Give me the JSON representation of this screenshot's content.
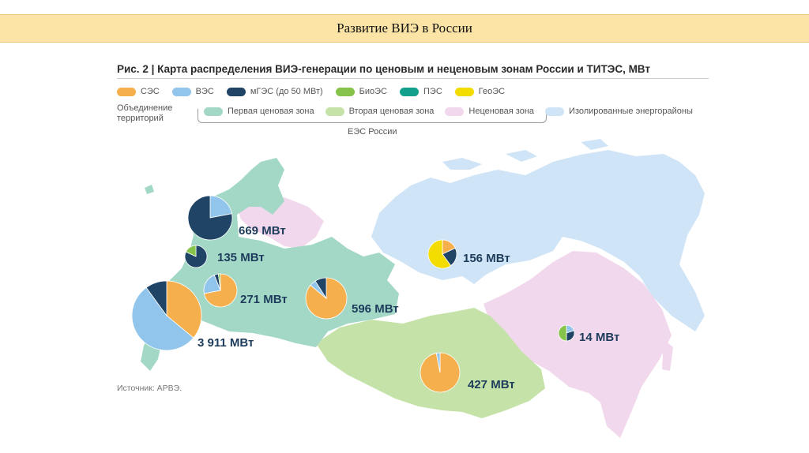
{
  "header": {
    "title": "Развитие ВИЭ в России"
  },
  "figure": {
    "title": "Рис. 2 | Карта распределения ВИЭ-генерации по ценовым и неценовым зонам России и ТИТЭС, МВт",
    "source": "Источник: АРВЭ."
  },
  "legend": {
    "types": [
      {
        "label": "СЭС",
        "color": "#f5b04d"
      },
      {
        "label": "ВЭС",
        "color": "#92c5ec"
      },
      {
        "label": "мГЭС (до 50 МВт)",
        "color": "#1f4466"
      },
      {
        "label": "БиоЭС",
        "color": "#86c34a"
      },
      {
        "label": "ПЭС",
        "color": "#12a08a"
      },
      {
        "label": "ГеоЭС",
        "color": "#f3dc00"
      }
    ],
    "union_label": "Объединение территорий",
    "zones": [
      {
        "label": "Первая ценовая зона",
        "color": "#a3d8c7"
      },
      {
        "label": "Вторая ценовая зона",
        "color": "#c5e3a8"
      },
      {
        "label": "Неценовая зона",
        "color": "#f2d8ec"
      },
      {
        "label": "Изолированные энергорайоны",
        "color": "#cfe4f7"
      }
    ],
    "ees_label": "ЕЭС России"
  },
  "map_data": {
    "regions": [
      {
        "label": "669 МВт",
        "value_mw": 669,
        "shares": [
          0,
          0.22,
          0.78,
          0,
          0,
          0
        ]
      },
      {
        "label": "135 МВт",
        "value_mw": 135,
        "shares": [
          0,
          0,
          0.82,
          0.18,
          0,
          0
        ]
      },
      {
        "label": "271 МВт",
        "value_mw": 271,
        "shares": [
          0.72,
          0.22,
          0.04,
          0.02,
          0,
          0
        ]
      },
      {
        "label": "596 МВт",
        "value_mw": 596,
        "shares": [
          0.86,
          0.05,
          0.09,
          0,
          0,
          0
        ]
      },
      {
        "label": "3 911 МВт",
        "value_mw": 3911,
        "shares": [
          0.36,
          0.54,
          0.1,
          0,
          0,
          0
        ]
      },
      {
        "label": "156 МВт",
        "value_mw": 156,
        "shares": [
          0.18,
          0,
          0.22,
          0,
          0,
          0.6
        ]
      },
      {
        "label": "427 МВт",
        "value_mw": 427,
        "shares": [
          0.97,
          0.03,
          0,
          0,
          0,
          0
        ]
      },
      {
        "label": "14 МВт",
        "value_mw": 14,
        "shares": [
          0,
          0.2,
          0.3,
          0.5,
          0,
          0
        ]
      }
    ]
  }
}
